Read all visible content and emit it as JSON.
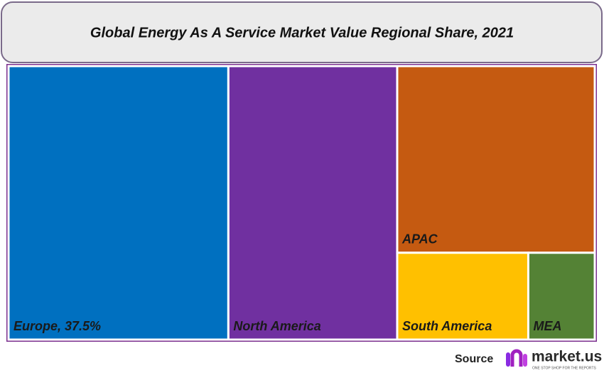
{
  "chart_data": {
    "type": "treemap",
    "title": "Global Energy As A Service Market Value Regional Share, 2021",
    "categories": [
      "Europe, 37.5%",
      "North America",
      "APAC",
      "South America",
      "MEA"
    ],
    "values": [
      37.5,
      28.8,
      23.0,
      7.1,
      3.6
    ],
    "colors": [
      "#0070c0",
      "#7030a0",
      "#c55a11",
      "#ffc000",
      "#548235"
    ]
  },
  "source": {
    "label": "Source",
    "brand": "market.us",
    "tagline": "ONE STOP SHOP FOR THE REPORTS"
  }
}
